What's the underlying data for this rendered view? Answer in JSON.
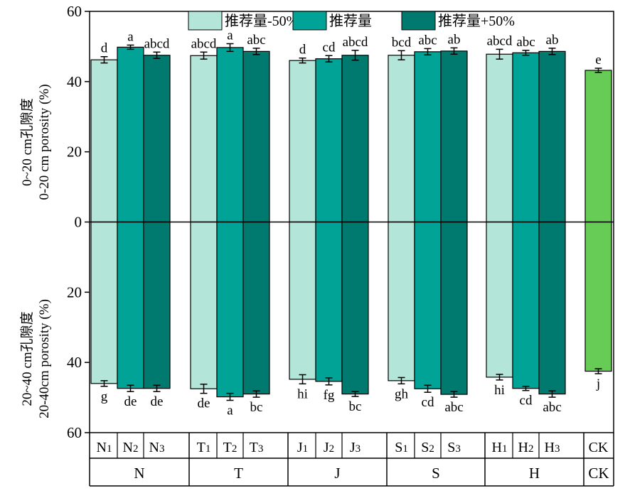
{
  "chart_data": {
    "type": "bar",
    "layout": "mirrored-vertical",
    "ylabel_top": [
      "0~20 cm孔隙度",
      "0-20 cm porosity (%)"
    ],
    "ylabel_bottom": [
      "20~40 cm孔隙度",
      "20-40cm porosity (%)"
    ],
    "ylim": [
      -60,
      60
    ],
    "ytick_values": [
      -60,
      -40,
      -20,
      0,
      20,
      40,
      60
    ],
    "ytick_labels": [
      "60",
      "40",
      "20",
      "0",
      "20",
      "40",
      "60"
    ],
    "legend_position": "top-center",
    "legend": [
      {
        "label": "推荐量-50%",
        "color": "#b3e6d9"
      },
      {
        "label": "推荐量",
        "color": "#00a396"
      },
      {
        "label": "推荐量+50%",
        "color": "#007a6e"
      }
    ],
    "ck_color": "#66cc55",
    "groups": [
      {
        "name": "N",
        "bars": [
          {
            "label": "N1",
            "main": "N",
            "sub": "1",
            "level": 0,
            "top": 46.2,
            "top_err": 0.9,
            "top_letter": "d",
            "bottom": 46.0,
            "bottom_err": 0.8,
            "bottom_letter": "g"
          },
          {
            "label": "N2",
            "main": "N",
            "sub": "2",
            "level": 1,
            "top": 49.8,
            "top_err": 0.6,
            "top_letter": "a",
            "bottom": 47.4,
            "bottom_err": 0.9,
            "bottom_letter": "de"
          },
          {
            "label": "N3",
            "main": "N",
            "sub": "3",
            "level": 2,
            "top": 47.5,
            "top_err": 0.9,
            "top_letter": "abcd",
            "bottom": 47.4,
            "bottom_err": 0.9,
            "bottom_letter": "de"
          }
        ]
      },
      {
        "name": "T",
        "bars": [
          {
            "label": "T1",
            "main": "T",
            "sub": "1",
            "level": 0,
            "top": 47.4,
            "top_err": 1.0,
            "top_letter": "abcd",
            "bottom": 47.5,
            "bottom_err": 1.3,
            "bottom_letter": "de"
          },
          {
            "label": "T2",
            "main": "T",
            "sub": "2",
            "level": 1,
            "top": 49.7,
            "top_err": 1.1,
            "top_letter": "a",
            "bottom": 49.8,
            "bottom_err": 1.0,
            "bottom_letter": "a"
          },
          {
            "label": "T3",
            "main": "T",
            "sub": "3",
            "level": 2,
            "top": 48.6,
            "top_err": 0.9,
            "top_letter": "abc",
            "bottom": 49.0,
            "bottom_err": 0.9,
            "bottom_letter": "bc"
          }
        ]
      },
      {
        "name": "J",
        "bars": [
          {
            "label": "J1",
            "main": "J",
            "sub": "1",
            "level": 0,
            "top": 46.0,
            "top_err": 0.7,
            "top_letter": "d",
            "bottom": 44.8,
            "bottom_err": 1.3,
            "bottom_letter": "hi"
          },
          {
            "label": "J2",
            "main": "J",
            "sub": "2",
            "level": 1,
            "top": 46.5,
            "top_err": 0.9,
            "top_letter": "cd",
            "bottom": 45.4,
            "bottom_err": 1.0,
            "bottom_letter": "fg"
          },
          {
            "label": "J3",
            "main": "J",
            "sub": "3",
            "level": 2,
            "top": 47.5,
            "top_err": 1.4,
            "top_letter": "abcd",
            "bottom": 49.0,
            "bottom_err": 0.7,
            "bottom_letter": "bc"
          }
        ]
      },
      {
        "name": "S",
        "bars": [
          {
            "label": "S1",
            "main": "S",
            "sub": "1",
            "level": 0,
            "top": 47.5,
            "top_err": 1.3,
            "top_letter": "bcd",
            "bottom": 45.2,
            "bottom_err": 0.9,
            "bottom_letter": "gh"
          },
          {
            "label": "S2",
            "main": "S",
            "sub": "2",
            "level": 1,
            "top": 48.5,
            "top_err": 0.9,
            "top_letter": "abc",
            "bottom": 47.5,
            "bottom_err": 1.0,
            "bottom_letter": "cd"
          },
          {
            "label": "S3",
            "main": "S",
            "sub": "3",
            "level": 2,
            "top": 48.7,
            "top_err": 0.9,
            "top_letter": "ab",
            "bottom": 49.1,
            "bottom_err": 0.8,
            "bottom_letter": "abc"
          }
        ]
      },
      {
        "name": "H",
        "bars": [
          {
            "label": "H1",
            "main": "H",
            "sub": "1",
            "level": 0,
            "top": 47.8,
            "top_err": 1.4,
            "top_letter": "abcd",
            "bottom": 44.2,
            "bottom_err": 0.8,
            "bottom_letter": "hi"
          },
          {
            "label": "H2",
            "main": "H",
            "sub": "2",
            "level": 1,
            "top": 48.2,
            "top_err": 0.7,
            "top_letter": "abc",
            "bottom": 47.4,
            "bottom_err": 0.6,
            "bottom_letter": "cd"
          },
          {
            "label": "H3",
            "main": "H",
            "sub": "3",
            "level": 2,
            "top": 48.6,
            "top_err": 0.9,
            "top_letter": "ab",
            "bottom": 49.0,
            "bottom_err": 0.9,
            "bottom_letter": "abc"
          }
        ]
      },
      {
        "name": "CK",
        "bars": [
          {
            "label": "CK",
            "main": "CK",
            "sub": "",
            "level": "ck",
            "top": 43.2,
            "top_err": 0.6,
            "top_letter": "e",
            "bottom": 42.5,
            "bottom_err": 0.7,
            "bottom_letter": "j"
          }
        ]
      }
    ]
  }
}
